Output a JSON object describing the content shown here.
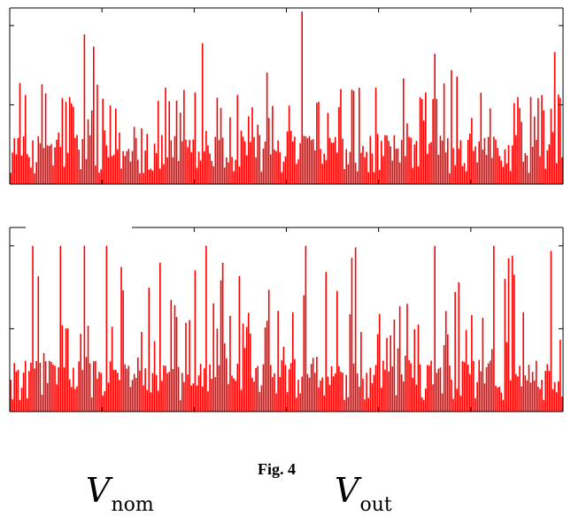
{
  "figure": {
    "caption": "Fig. 4",
    "symbols": {
      "left": {
        "letter": "V",
        "subscript": "nom"
      },
      "right": {
        "letter": "V",
        "subscript": "out"
      }
    }
  },
  "colors": {
    "series": "#ff0000",
    "axes": "#000000"
  },
  "chart_data": [
    {
      "type": "bar",
      "panel": "top",
      "title": "",
      "xlabel": "",
      "ylabel": "",
      "n_points": 300,
      "ylim": [
        0,
        1
      ],
      "yticks_relative": [
        0,
        0.45,
        0.9
      ],
      "xticks_count": 6,
      "tick_labels_visible": false,
      "grid": false,
      "series": [
        {
          "color": "#ff0000",
          "profile": "random positive spikes; typical peaks 0.3-0.6 of axis height, dense base 0.1-0.3",
          "notable_peaks": [
            {
              "index": 40,
              "value": 0.85
            },
            {
              "index": 45,
              "value": 0.78
            },
            {
              "index": 104,
              "value": 0.8
            },
            {
              "index": 158,
              "value": 0.98
            },
            {
              "index": 230,
              "value": 0.74
            },
            {
              "index": 295,
              "value": 0.75
            }
          ]
        }
      ]
    },
    {
      "type": "bar",
      "panel": "bottom",
      "title": "",
      "xlabel": "",
      "ylabel": "",
      "n_points": 300,
      "ylim": [
        0,
        1
      ],
      "yticks_relative": [
        0,
        0.45,
        0.9
      ],
      "xticks_count": 6,
      "tick_labels_visible": false,
      "grid": false,
      "series": [
        {
          "color": "#ff0000",
          "profile": "random positive spikes; many peaks reaching the top tick (~0.9), dense base 0.1-0.4",
          "notable_peaks": [
            {
              "index": 12,
              "value": 0.9
            },
            {
              "index": 27,
              "value": 0.9
            },
            {
              "index": 40,
              "value": 0.9
            },
            {
              "index": 52,
              "value": 0.9
            },
            {
              "index": 106,
              "value": 0.9
            },
            {
              "index": 160,
              "value": 0.9
            },
            {
              "index": 230,
              "value": 0.9
            },
            {
              "index": 262,
              "value": 0.9
            }
          ]
        }
      ]
    }
  ]
}
